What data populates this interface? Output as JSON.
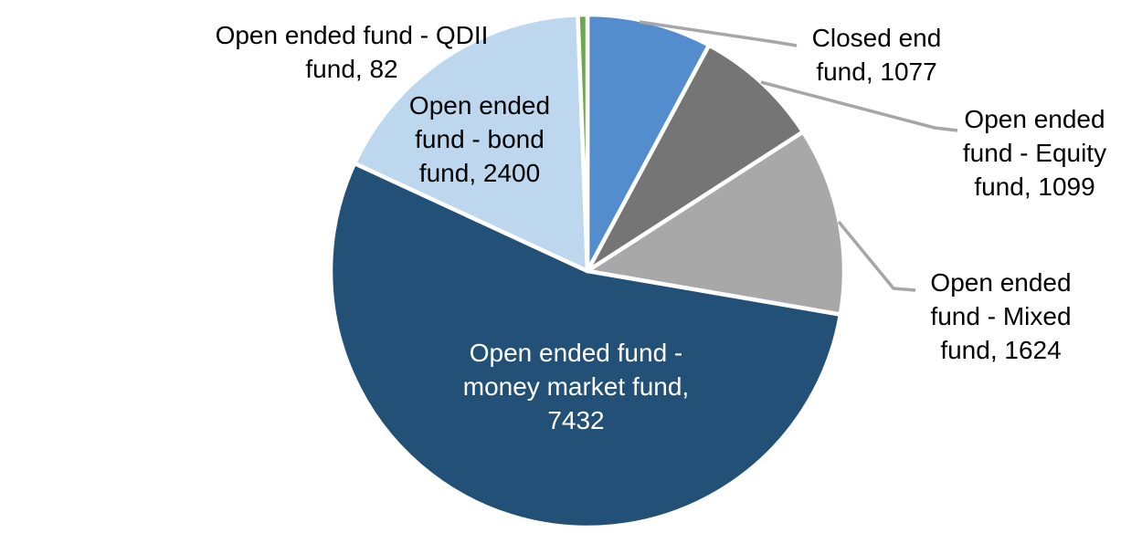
{
  "chart_data": {
    "type": "pie",
    "title": "",
    "total": 13714,
    "start_angle_deg": 0,
    "direction": "clockwise",
    "background": "#FFFFFF",
    "slice_border_color": "#FFFFFF",
    "leader_line_color": "#A6A6A6",
    "label_font_color": "#000000",
    "inside_dark_label_font_color": "#FFFFFF",
    "series": [
      {
        "id": "closed-end-fund",
        "name": "Closed end fund",
        "value": 1077,
        "color": "#548DCE",
        "label": "Closed end\nfund, 1077",
        "label_position": "outside"
      },
      {
        "id": "equity-fund",
        "name": "Open ended fund - Equity fund",
        "value": 1099,
        "color": "#757575",
        "label": "Open ended\nfund - Equity\nfund, 1099",
        "label_position": "outside"
      },
      {
        "id": "mixed-fund",
        "name": "Open ended fund - Mixed fund",
        "value": 1624,
        "color": "#A8A8A8",
        "label": "Open ended\nfund - Mixed\nfund, 1624",
        "label_position": "outside"
      },
      {
        "id": "money-market-fund",
        "name": "Open ended fund - money market fund",
        "value": 7432,
        "color": "#235077",
        "label": "Open ended fund -\nmoney market fund,\n7432",
        "label_position": "inside"
      },
      {
        "id": "bond-fund",
        "name": "Open ended fund - bond fund",
        "value": 2400,
        "color": "#BDD7EE",
        "label": "Open ended\nfund - bond\nfund, 2400",
        "label_position": "inside"
      },
      {
        "id": "qdii-fund",
        "name": "Open ended fund - QDII fund",
        "value": 82,
        "color": "#6CA94E",
        "label": "Open ended fund - QDII\nfund, 82",
        "label_position": "outside"
      }
    ]
  }
}
